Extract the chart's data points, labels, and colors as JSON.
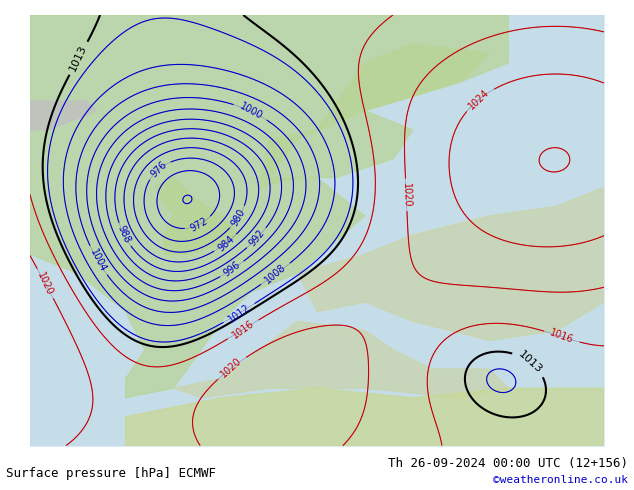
{
  "title_left": "Surface pressure [hPa] ECMWF",
  "title_right": "Th 26-09-2024 00:00 UTC (12+156)",
  "copyright": "©weatheronline.co.uk",
  "bg_ocean": "#d8eaf5",
  "bg_land_green": "#c8e6a0",
  "bg_land_gray": "#b8b8b8",
  "contour_blue_color": "#0000cc",
  "contour_red_color": "#cc0000",
  "contour_black_color": "#000000",
  "label_fontsize": 7,
  "footer_fontsize": 9,
  "copyright_fontsize": 8,
  "copyright_color": "#0000cc"
}
